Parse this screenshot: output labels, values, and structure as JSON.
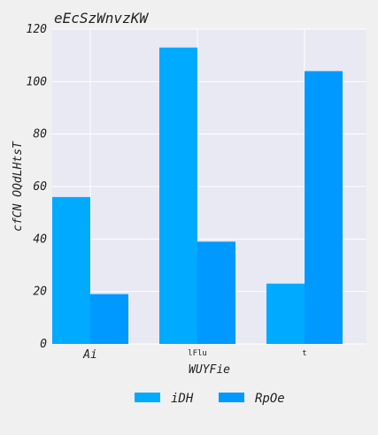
{
  "chart_data": {
    "type": "bar",
    "title": "eEcSzWnvzKW",
    "xlabel": "WUYFie",
    "ylabel": "cfCN OQdLHtsT",
    "categories": [
      "Ai",
      "lFlu",
      "t"
    ],
    "series": [
      {
        "name": "iDH",
        "values": [
          56,
          113,
          23
        ],
        "color": "#00aaff"
      },
      {
        "name": "RpOe",
        "values": [
          19,
          39,
          104
        ],
        "color": "#0099ff"
      }
    ],
    "ylim": [
      0,
      120
    ],
    "yticks": [
      0,
      20,
      40,
      60,
      80,
      100,
      120
    ],
    "grid": true,
    "legend_position": "bottom-center",
    "colors": {
      "plot_background": "#e8e9f2",
      "page_background": "#f0f0f0",
      "grid": "#ffffff"
    }
  }
}
